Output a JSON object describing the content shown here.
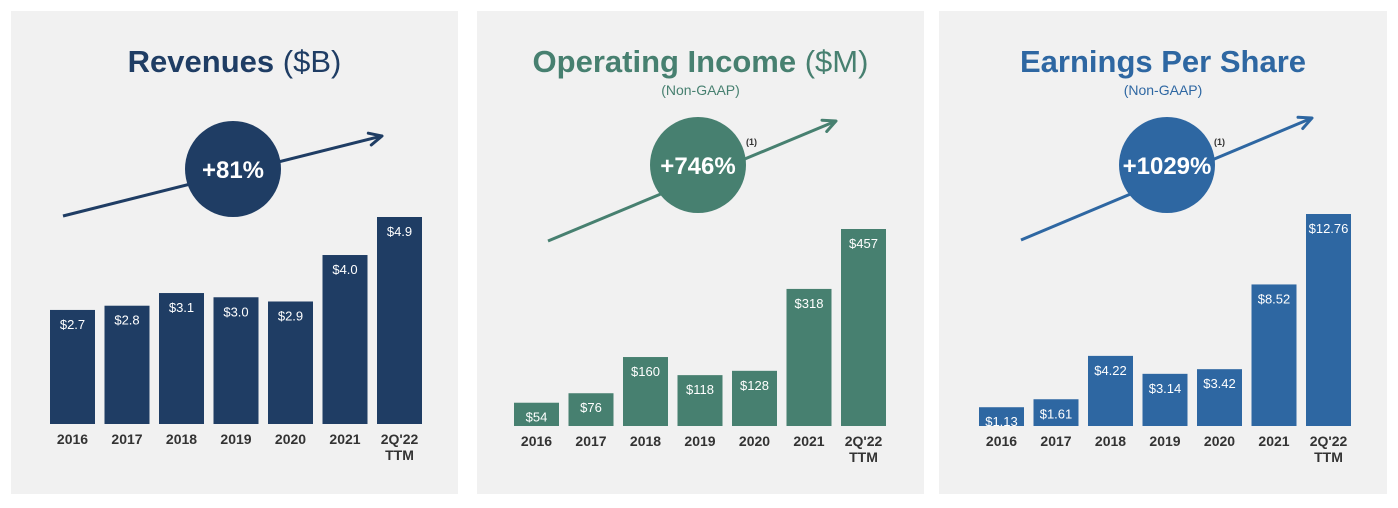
{
  "chart_data": [
    {
      "type": "bar",
      "title": "Revenues",
      "unit": "($B)",
      "subtitle": "",
      "growth_badge": "+81%",
      "footnote": "",
      "color": "#1f3d64",
      "categories": [
        "2016",
        "2017",
        "2018",
        "2019",
        "2020",
        "2021",
        "2Q'22 TTM"
      ],
      "values": [
        2.7,
        2.8,
        3.1,
        3.0,
        2.9,
        4.0,
        4.9
      ],
      "data_labels": [
        "$2.7",
        "$2.8",
        "$3.1",
        "$3.0",
        "$2.9",
        "$4.0",
        "$4.9"
      ],
      "ylim": [
        0,
        4.9
      ],
      "grid": false
    },
    {
      "type": "bar",
      "title": "Operating Income",
      "unit": "($M)",
      "subtitle": "(Non-GAAP)",
      "growth_badge": "+746%",
      "footnote": "(1)",
      "color": "#478070",
      "categories": [
        "2016",
        "2017",
        "2018",
        "2019",
        "2020",
        "2021",
        "2Q'22 TTM"
      ],
      "values": [
        54,
        76,
        160,
        118,
        128,
        318,
        457
      ],
      "data_labels": [
        "$54",
        "$76",
        "$160",
        "$118",
        "$128",
        "$318",
        "$457"
      ],
      "ylim": [
        0,
        457
      ],
      "grid": false
    },
    {
      "type": "bar",
      "title": "Earnings Per Share",
      "unit": "",
      "subtitle": "(Non-GAAP)",
      "growth_badge": "+1029%",
      "footnote": "(1)",
      "color": "#2e67a2",
      "categories": [
        "2016",
        "2017",
        "2018",
        "2019",
        "2020",
        "2021",
        "2Q'22 TTM"
      ],
      "values": [
        1.13,
        1.61,
        4.22,
        3.14,
        3.42,
        8.52,
        12.76
      ],
      "data_labels": [
        "$1.13",
        "$1.61",
        "$4.22",
        "$3.14",
        "$3.42",
        "$8.52",
        "$12.76"
      ],
      "ylim": [
        0,
        12.76
      ],
      "grid": false
    }
  ]
}
